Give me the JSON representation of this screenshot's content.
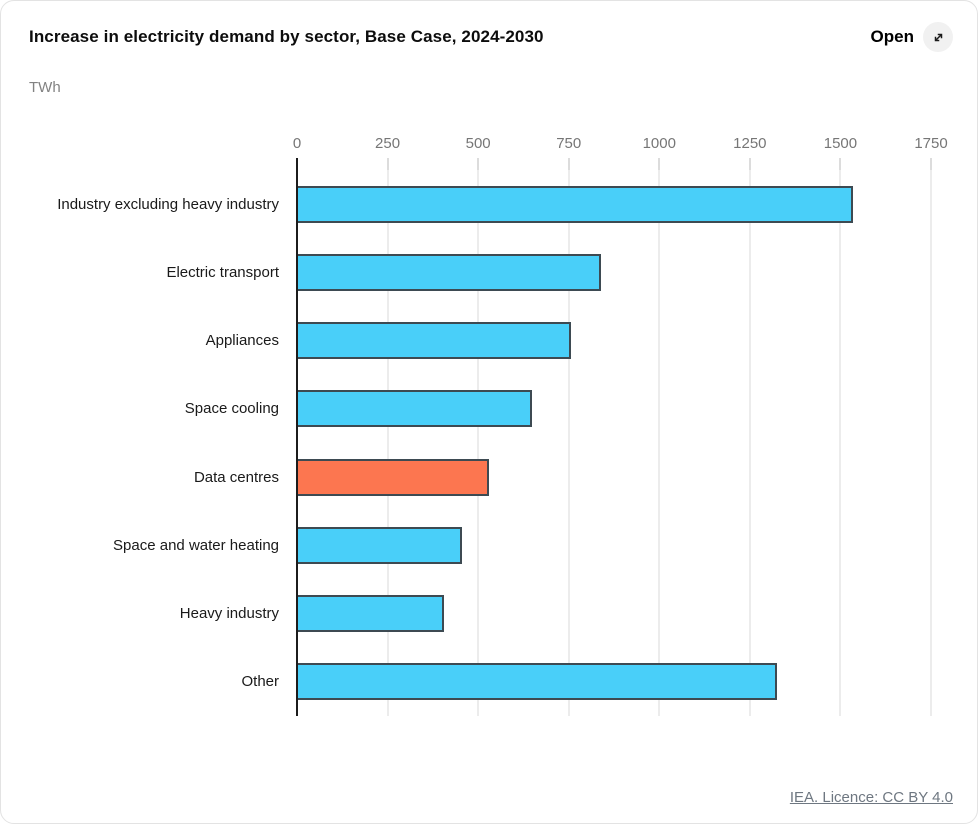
{
  "header": {
    "title": "Increase in electricity demand by sector, Base Case, 2024-2030",
    "open_label": "Open",
    "open_icon": "expand-diagonal-arrow-icon"
  },
  "unit_label": "TWh",
  "footer": {
    "license_text": "IEA. Licence: CC BY 4.0"
  },
  "colors": {
    "bar_default": "#49cff9",
    "bar_highlight": "#fc7650",
    "bar_border": "#3d4a52",
    "axis_line": "#1c1c1c",
    "gridline": "#ececec",
    "tick_label": "#767676"
  },
  "chart_data": {
    "type": "bar",
    "orientation": "horizontal",
    "title": "Increase in electricity demand by sector, Base Case, 2024-2030",
    "unit": "TWh",
    "categories": [
      "Industry excluding heavy industry",
      "Electric transport",
      "Appliances",
      "Space cooling",
      "Data centres",
      "Space and water heating",
      "Heavy industry",
      "Other"
    ],
    "values": [
      1535,
      840,
      755,
      650,
      530,
      455,
      405,
      1325
    ],
    "highlighted_category": "Data centres",
    "xlim": [
      0,
      1750
    ],
    "xticks": [
      0,
      250,
      500,
      750,
      1000,
      1250,
      1500,
      1750
    ],
    "grid": true,
    "legend": false
  }
}
